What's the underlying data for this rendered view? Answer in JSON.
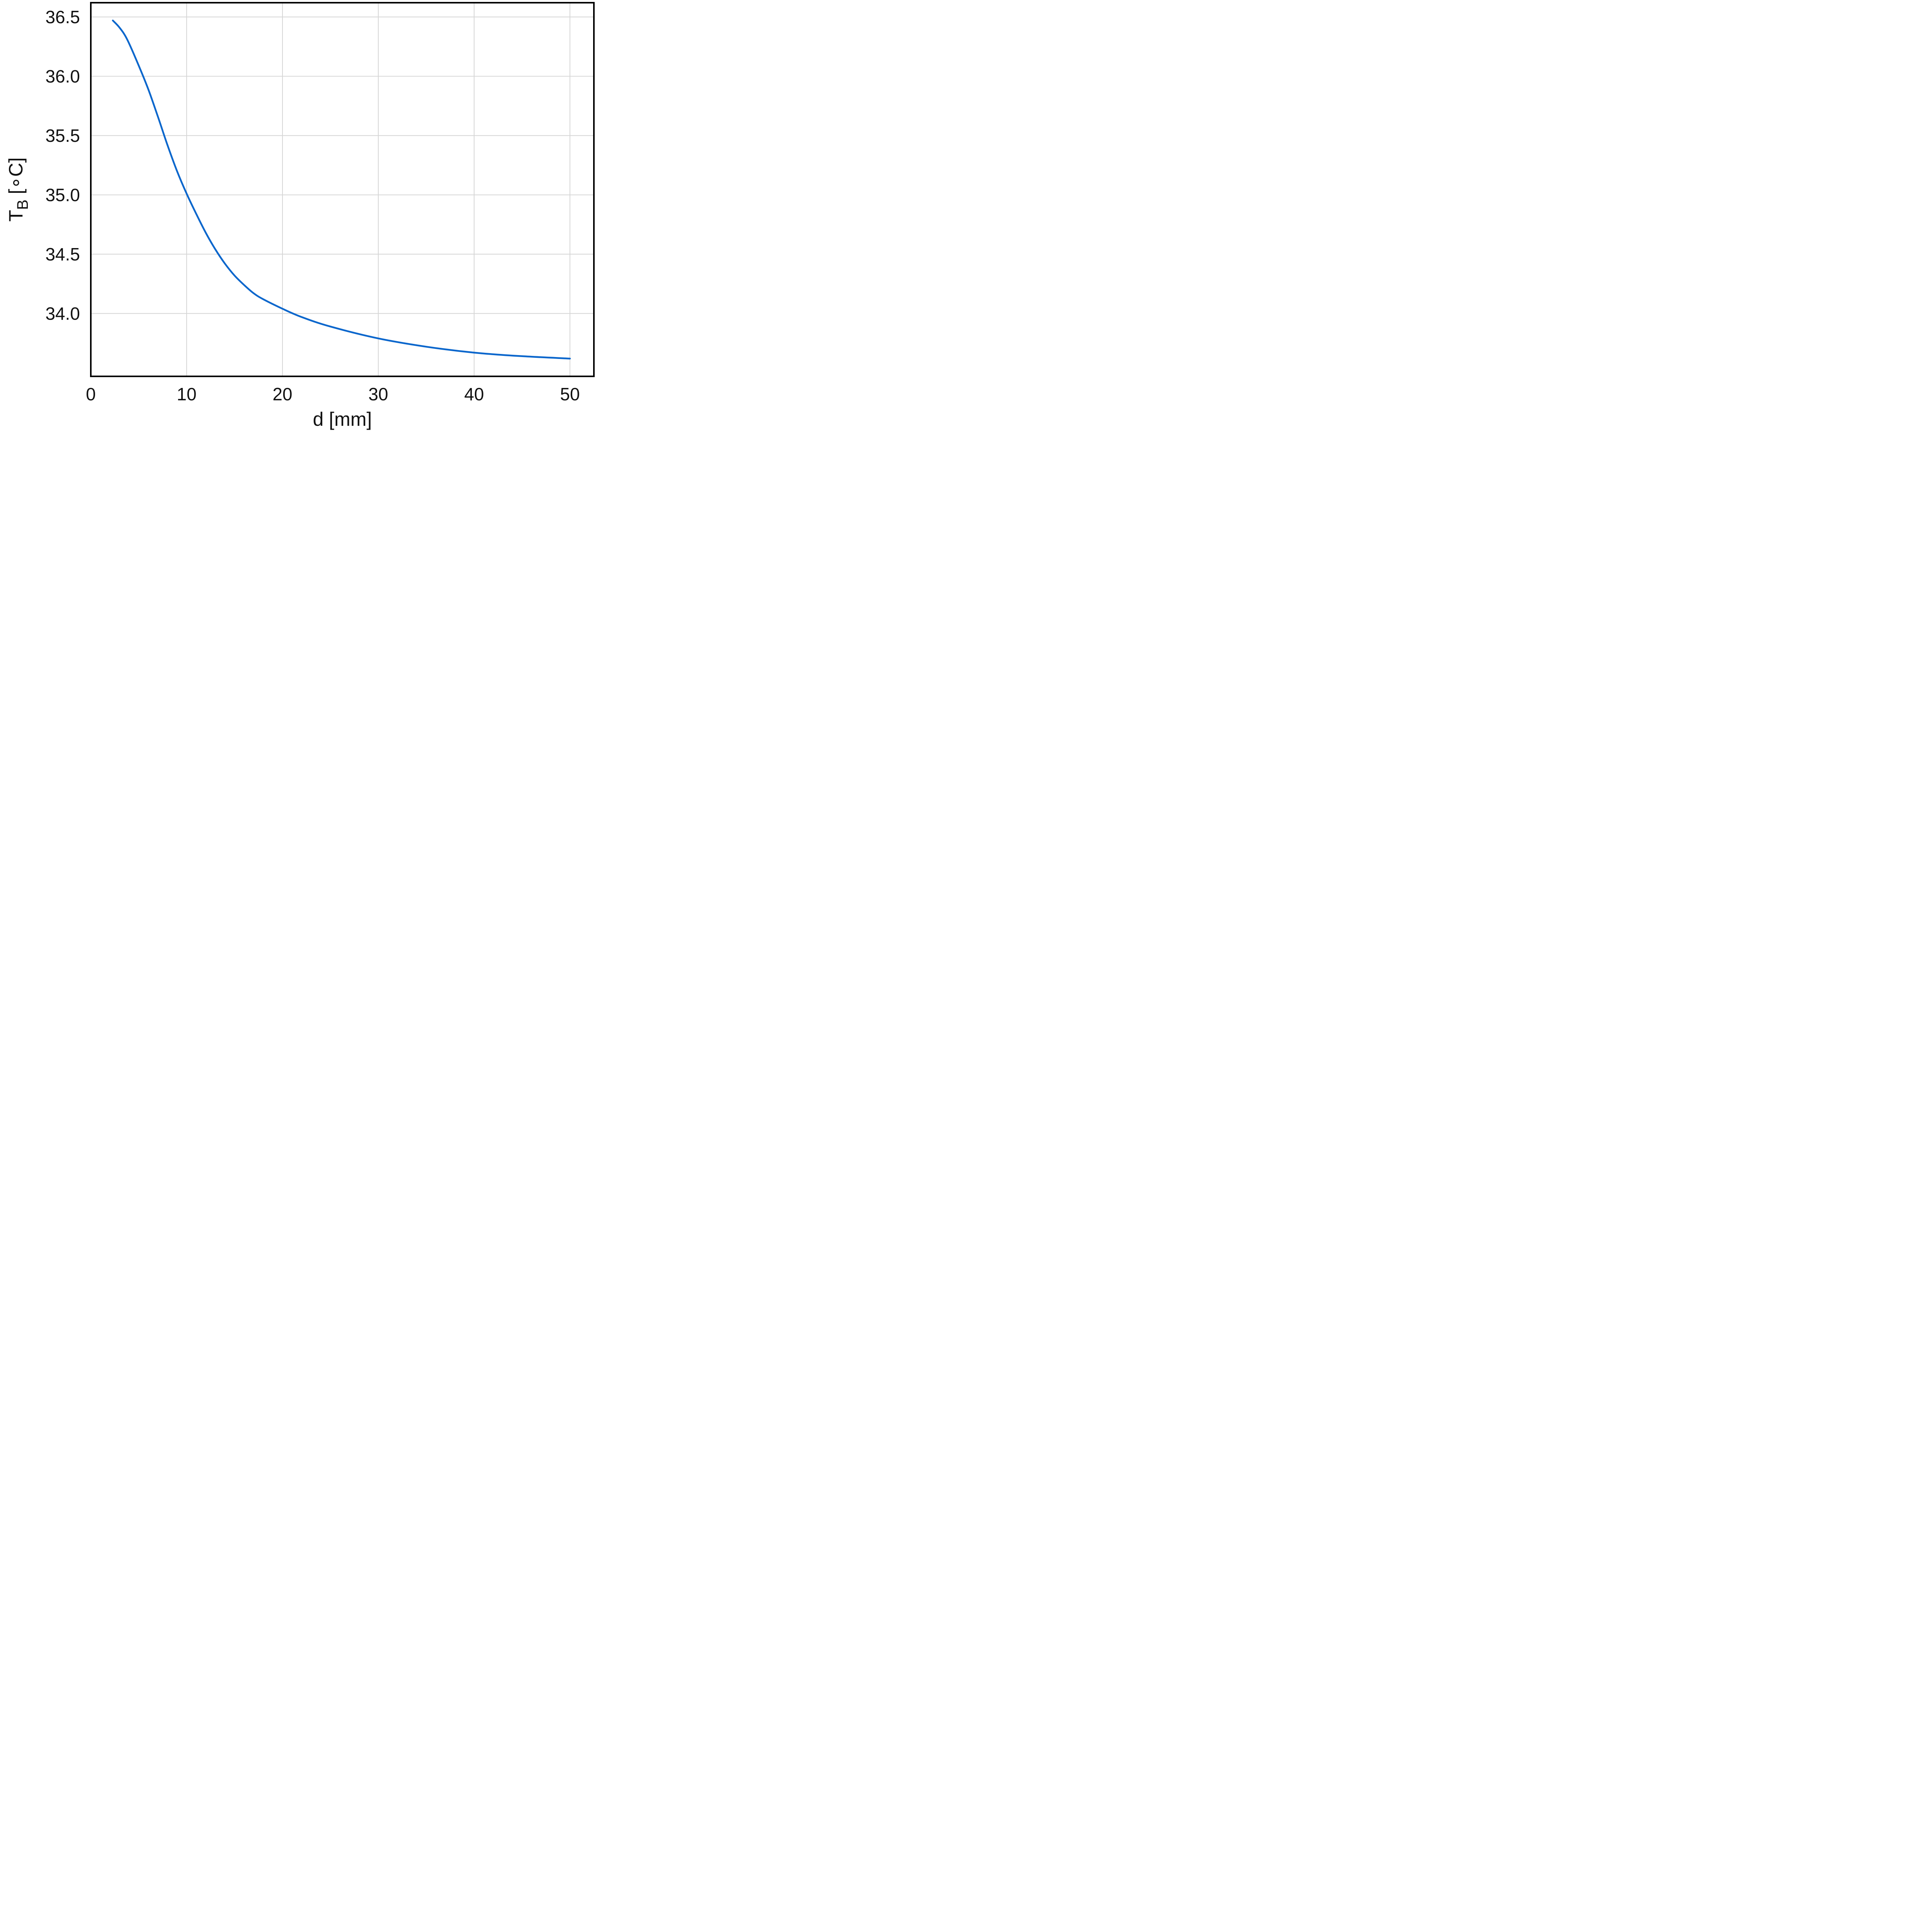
{
  "chart_data": {
    "type": "line",
    "title": "",
    "xlabel": "d [mm]",
    "ylabel_main": "T",
    "ylabel_sub": "B",
    "ylabel_unit": " [∘C]",
    "xlim": [
      0,
      52.5
    ],
    "ylim": [
      33.47,
      36.62
    ],
    "xticks": [
      0,
      10,
      20,
      30,
      40,
      50
    ],
    "xtick_labels": [
      "0",
      "10",
      "20",
      "30",
      "40",
      "50"
    ],
    "yticks": [
      34.0,
      34.5,
      35.0,
      35.5,
      36.0,
      36.5
    ],
    "ytick_labels": [
      "34.0",
      "34.5",
      "35.0",
      "35.5",
      "36.0",
      "36.5"
    ],
    "grid": true,
    "series": [
      {
        "color": "#0a66cc",
        "x": [
          2.3,
          3.0,
          3.8,
          5.0,
          6.0,
          7.0,
          8.0,
          9.0,
          10.0,
          11.0,
          12.0,
          13.0,
          14.0,
          15.0,
          16.0,
          17.0,
          18.0,
          20.0,
          22.0,
          25.0,
          30.0,
          35.0,
          40.0,
          45.0,
          50.0
        ],
        "y": [
          36.47,
          36.41,
          36.31,
          36.09,
          35.89,
          35.66,
          35.42,
          35.2,
          35.01,
          34.84,
          34.68,
          34.54,
          34.42,
          34.32,
          34.24,
          34.17,
          34.12,
          34.04,
          33.97,
          33.89,
          33.79,
          33.72,
          33.67,
          33.64,
          33.62
        ]
      }
    ]
  }
}
